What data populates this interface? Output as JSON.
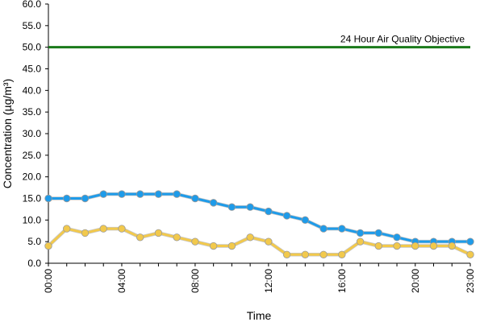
{
  "chart_data": {
    "type": "line",
    "title": "",
    "xlabel": "Time",
    "ylabel": "Concentration (µg/m³)",
    "x": [
      "00:00",
      "01:00",
      "02:00",
      "03:00",
      "04:00",
      "05:00",
      "06:00",
      "07:00",
      "08:00",
      "09:00",
      "10:00",
      "11:00",
      "12:00",
      "13:00",
      "14:00",
      "15:00",
      "16:00",
      "17:00",
      "18:00",
      "19:00",
      "20:00",
      "21:00",
      "22:00",
      "23:00"
    ],
    "x_tick_labels": [
      "00:00",
      "04:00",
      "08:00",
      "12:00",
      "16:00",
      "20:00",
      "23:00"
    ],
    "ylim": [
      0,
      60
    ],
    "y_tick_labels": [
      "0.0",
      "5.0",
      "10.0",
      "15.0",
      "20.0",
      "25.0",
      "30.0",
      "35.0",
      "40.0",
      "45.0",
      "50.0",
      "55.0",
      "60.0"
    ],
    "grid": false,
    "series": [
      {
        "color": "#1e9be9",
        "values": [
          15,
          15,
          15,
          16,
          16,
          16,
          16,
          16,
          15,
          14,
          13,
          13,
          12,
          11,
          10,
          8,
          8,
          7,
          7,
          6,
          5,
          5,
          5,
          5
        ]
      },
      {
        "color": "#f2c94c",
        "values": [
          4,
          8,
          7,
          8,
          8,
          6,
          7,
          6,
          5,
          4,
          4,
          6,
          5,
          2,
          2,
          2,
          2,
          5,
          4,
          4,
          4,
          4,
          4,
          2
        ]
      }
    ],
    "reference_line": {
      "label": "24 Hour Air Quality Objective",
      "value": 50,
      "color": "#1a7a1a"
    }
  }
}
